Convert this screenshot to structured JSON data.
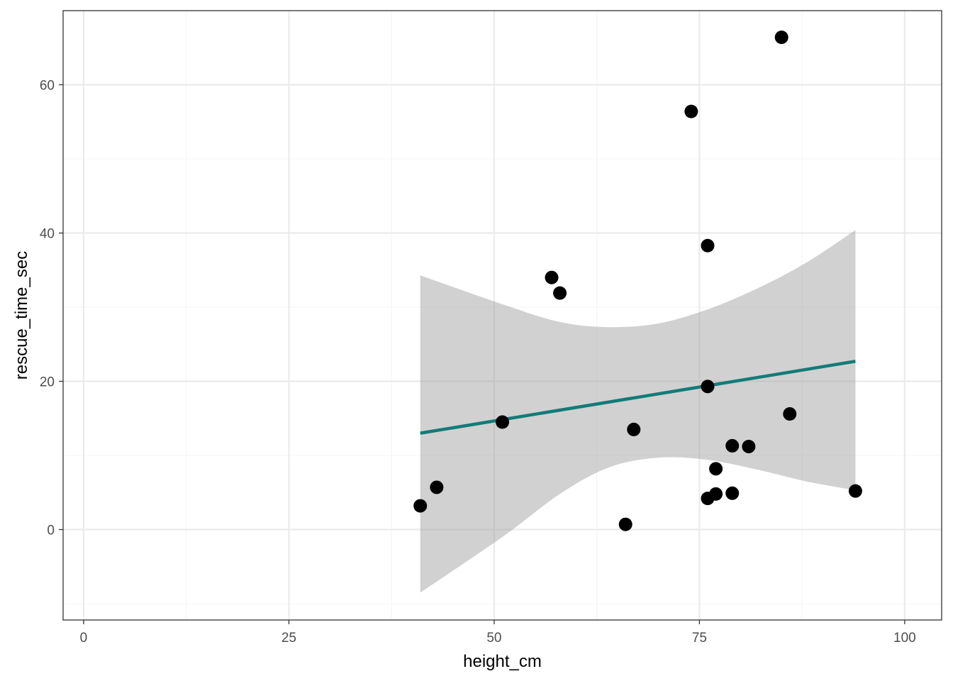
{
  "chart_data": {
    "type": "scatter",
    "title": "",
    "xlabel": "height_cm",
    "ylabel": "rescue_time_sec",
    "xlim": [
      -2.5,
      104.5
    ],
    "ylim": [
      -12.2,
      70
    ],
    "x_ticks": [
      0,
      25,
      50,
      75,
      100
    ],
    "x_tick_labels": [
      "0",
      "25",
      "50",
      "75",
      "100"
    ],
    "x_minor": [
      12.5,
      37.5,
      62.5,
      87.5
    ],
    "y_ticks": [
      0,
      20,
      40,
      60
    ],
    "y_tick_labels": [
      "0",
      "20",
      "40",
      "60"
    ],
    "y_minor": [
      -10,
      10,
      30,
      50
    ],
    "grid": true,
    "points": [
      {
        "x": 41,
        "y": 3.2
      },
      {
        "x": 43,
        "y": 5.7
      },
      {
        "x": 51,
        "y": 14.5
      },
      {
        "x": 57,
        "y": 34.0
      },
      {
        "x": 58,
        "y": 31.9
      },
      {
        "x": 66,
        "y": 0.7
      },
      {
        "x": 67,
        "y": 13.5
      },
      {
        "x": 74,
        "y": 56.4
      },
      {
        "x": 76,
        "y": 38.3
      },
      {
        "x": 76,
        "y": 19.3
      },
      {
        "x": 76,
        "y": 4.2
      },
      {
        "x": 77,
        "y": 8.2
      },
      {
        "x": 77,
        "y": 4.8
      },
      {
        "x": 79,
        "y": 11.3
      },
      {
        "x": 79,
        "y": 4.9
      },
      {
        "x": 81,
        "y": 11.2
      },
      {
        "x": 85,
        "y": 66.4
      },
      {
        "x": 86,
        "y": 15.6
      },
      {
        "x": 94,
        "y": 5.2
      }
    ],
    "fit": {
      "method": "lm",
      "x": [
        41,
        94
      ],
      "y": [
        13.0,
        22.7
      ],
      "ribbon": [
        {
          "x": 41,
          "lower": -8.5,
          "upper": 34.3
        },
        {
          "x": 51,
          "lower": -1.0,
          "upper": 30.4
        },
        {
          "x": 58,
          "lower": 4.8,
          "upper": 28.0
        },
        {
          "x": 64,
          "lower": 8.4,
          "upper": 27.3
        },
        {
          "x": 70,
          "lower": 9.7,
          "upper": 27.8
        },
        {
          "x": 76,
          "lower": 9.4,
          "upper": 29.7
        },
        {
          "x": 82,
          "lower": 8.1,
          "upper": 32.5
        },
        {
          "x": 88,
          "lower": 6.5,
          "upper": 36.0
        },
        {
          "x": 94,
          "lower": 5.3,
          "upper": 40.4
        }
      ]
    },
    "colors": {
      "point": "#000000",
      "line": "#137b78",
      "ribbon": "#999999",
      "grid_major": "#ebebeb",
      "grid_minor": "#f4f4f4",
      "panel_border": "#333333"
    }
  }
}
